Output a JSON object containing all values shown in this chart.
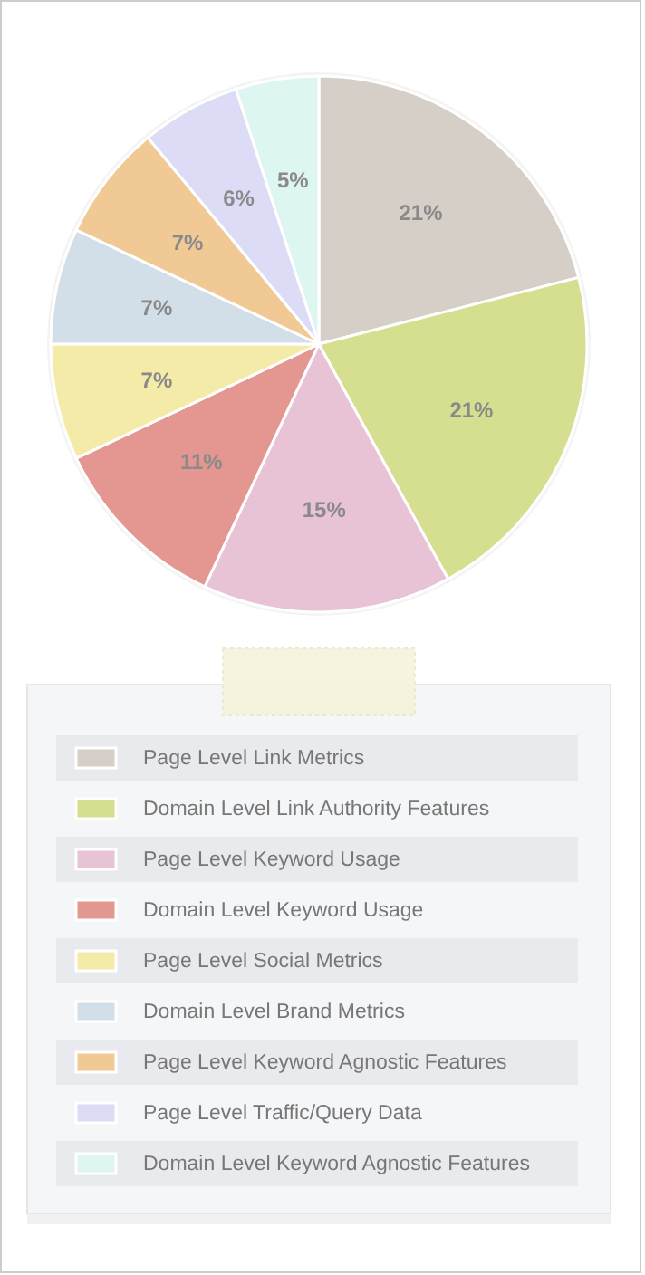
{
  "chart_data": {
    "type": "pie",
    "categories": [
      "Page Level Link Metrics",
      "Domain Level Link Authority Features",
      "Page Level Keyword Usage",
      "Domain Level Keyword Usage",
      "Page Level Social Metrics",
      "Domain Level Brand Metrics",
      "Page Level Keyword Agnostic Features",
      "Page Level Traffic/Query Data",
      "Domain Level Keyword Agnostic Features"
    ],
    "values": [
      21,
      21,
      15,
      11,
      7,
      7,
      7,
      6,
      5
    ],
    "colors": [
      "#d6cfc7",
      "#d6df8f",
      "#e8c3d6",
      "#e49790",
      "#f5eba8",
      "#d3dfe8",
      "#f0c995",
      "#dddcf6",
      "#def6f1"
    ],
    "value_labels": [
      "21%",
      "21%",
      "15%",
      "11%",
      "7%",
      "7%",
      "7%",
      "6%",
      "5%"
    ],
    "legend": "bottom"
  }
}
